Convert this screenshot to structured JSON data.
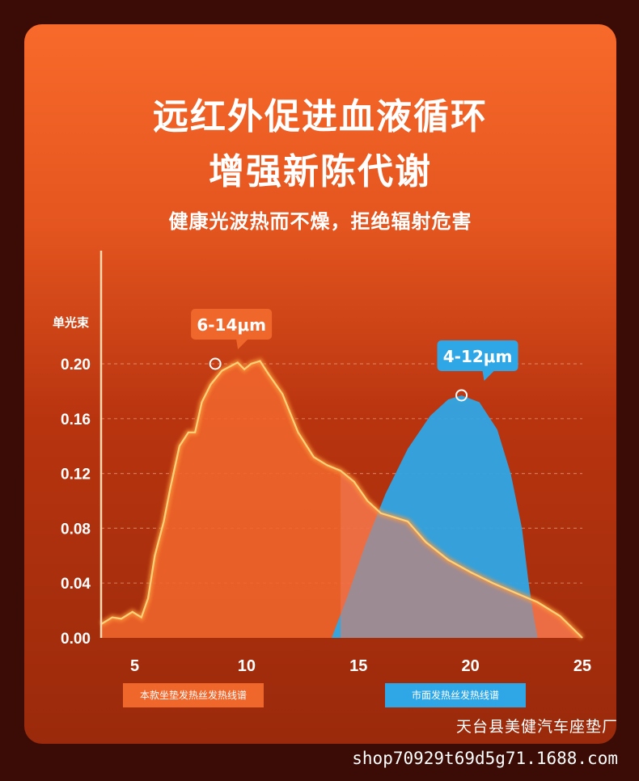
{
  "header": {
    "title_line1": "远红外促进血液循环",
    "title_line2": "增强新陈代谢",
    "subtitle": "健康光波热而不燥，拒绝辐射危害"
  },
  "watermark": {
    "shop_name": "天台县美健汽车座垫厂",
    "url": "shop70929t69d5g71.1688.com"
  },
  "colors": {
    "orange_series": "#f0672c",
    "blue_series": "#2fa7e6",
    "glow_line": "#ffd27a"
  },
  "chart_data": {
    "type": "area",
    "ylabel": "单光束",
    "xlabel": "",
    "xlim": [
      3.5,
      25
    ],
    "ylim": [
      0,
      0.2
    ],
    "x_ticks": [
      5,
      10,
      15,
      20,
      25
    ],
    "y_ticks": [
      "0.00",
      "0.04",
      "0.08",
      "0.12",
      "0.16",
      "0.20"
    ],
    "legend_position": "bottom",
    "series": [
      {
        "name": "本款坐垫发热丝发热线谱",
        "color": "#f0672c",
        "peak_label": "6-14μm",
        "peak_marker": [
          8.6,
          0.2
        ],
        "points": [
          [
            3.5,
            0.01
          ],
          [
            4.0,
            0.015
          ],
          [
            4.4,
            0.014
          ],
          [
            4.9,
            0.019
          ],
          [
            5.3,
            0.015
          ],
          [
            5.6,
            0.029
          ],
          [
            5.9,
            0.06
          ],
          [
            6.3,
            0.085
          ],
          [
            6.6,
            0.11
          ],
          [
            7.0,
            0.14
          ],
          [
            7.4,
            0.15
          ],
          [
            7.7,
            0.15
          ],
          [
            8.0,
            0.172
          ],
          [
            8.4,
            0.185
          ],
          [
            8.9,
            0.195
          ],
          [
            9.6,
            0.201
          ],
          [
            9.9,
            0.196
          ],
          [
            10.2,
            0.2
          ],
          [
            10.6,
            0.202
          ],
          [
            11.0,
            0.192
          ],
          [
            11.6,
            0.178
          ],
          [
            12.3,
            0.15
          ],
          [
            13.0,
            0.132
          ],
          [
            13.6,
            0.126
          ],
          [
            14.2,
            0.122
          ],
          [
            14.8,
            0.114
          ],
          [
            15.4,
            0.1
          ],
          [
            16.0,
            0.091
          ],
          [
            16.6,
            0.088
          ],
          [
            17.2,
            0.085
          ],
          [
            18.0,
            0.07
          ],
          [
            19.0,
            0.057
          ],
          [
            20.0,
            0.048
          ],
          [
            21.0,
            0.04
          ],
          [
            22.0,
            0.033
          ],
          [
            23.0,
            0.026
          ],
          [
            24.0,
            0.016
          ],
          [
            25.0,
            0.0
          ]
        ]
      },
      {
        "name": "市面发热丝发热线谱",
        "color": "#2fa7e6",
        "peak_label": "4-12μm",
        "peak_marker": [
          19.6,
          0.177
        ],
        "points": [
          [
            13.8,
            0.0
          ],
          [
            14.5,
            0.03
          ],
          [
            15.3,
            0.068
          ],
          [
            16.2,
            0.105
          ],
          [
            17.2,
            0.138
          ],
          [
            18.2,
            0.162
          ],
          [
            19.0,
            0.174
          ],
          [
            19.6,
            0.177
          ],
          [
            20.4,
            0.172
          ],
          [
            21.2,
            0.152
          ],
          [
            21.8,
            0.12
          ],
          [
            22.3,
            0.08
          ],
          [
            22.6,
            0.04
          ],
          [
            22.8,
            0.018
          ],
          [
            23.0,
            0.0
          ]
        ]
      }
    ]
  }
}
